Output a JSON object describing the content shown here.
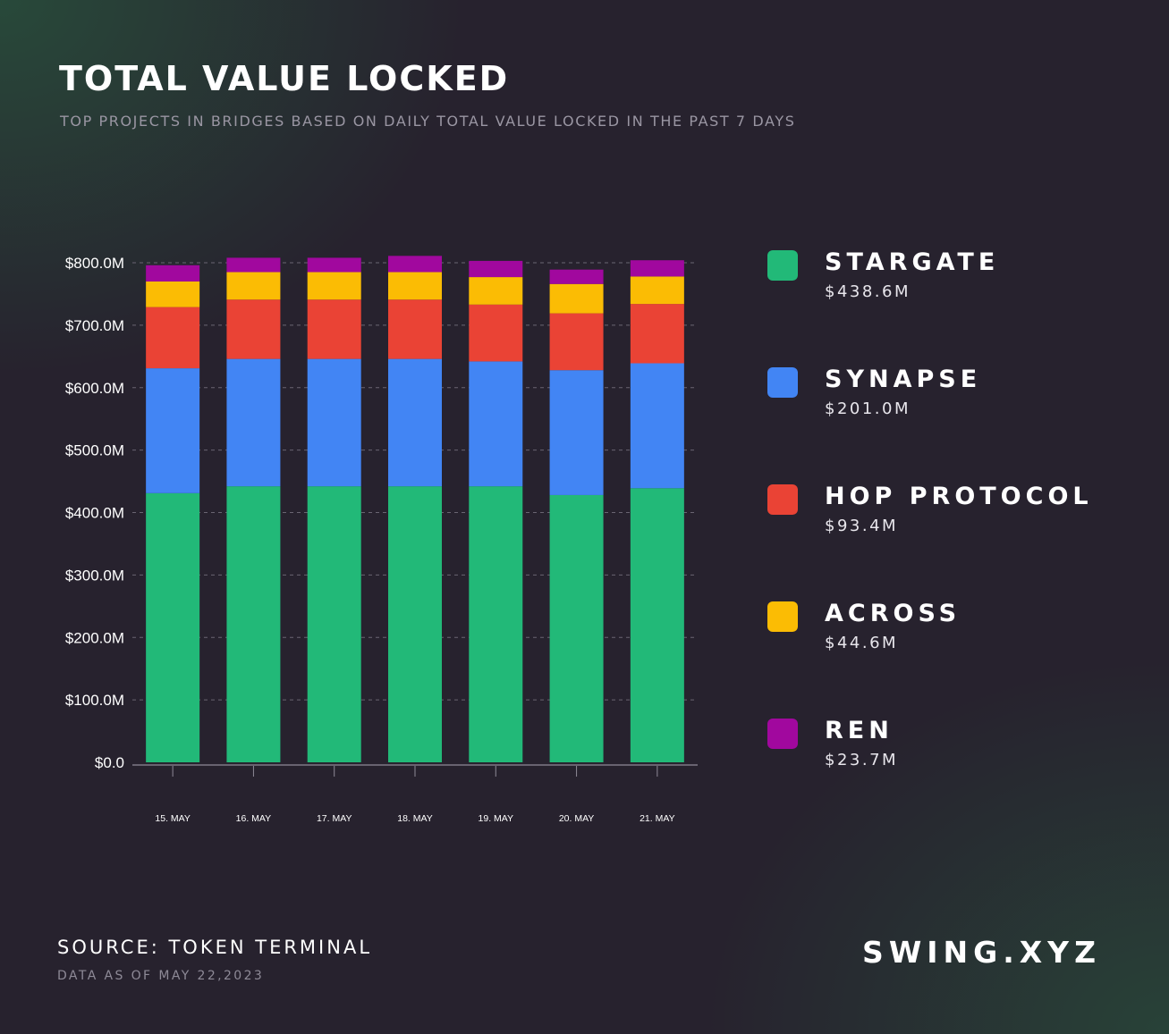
{
  "title": "TOTAL VALUE LOCKED",
  "subtitle": "TOP PROJECTS IN BRIDGES BASED ON DAILY TOTAL VALUE LOCKED IN THE PAST 7 DAYS",
  "legend": [
    {
      "name": "STARGATE",
      "value": "$438.6M",
      "color": "#22b978"
    },
    {
      "name": "SYNAPSE",
      "value": "$201.0M",
      "color": "#4285f4"
    },
    {
      "name": "HOP PROTOCOL",
      "value": "$93.4M",
      "color": "#ea4335"
    },
    {
      "name": "ACROSS",
      "value": "$44.6M",
      "color": "#fbbc04"
    },
    {
      "name": "REN",
      "value": "$23.7M",
      "color": "#a1089e"
    }
  ],
  "footer": {
    "source": "SOURCE: TOKEN TERMINAL",
    "as_of": "DATA AS OF MAY 22,2023",
    "brand": "SWING.XYZ"
  },
  "chart_data": {
    "type": "bar",
    "stacked": true,
    "categories": [
      "15. MAY",
      "16. MAY",
      "17. MAY",
      "18. MAY",
      "19. MAY",
      "20. MAY",
      "21. MAY"
    ],
    "ylim": [
      0,
      800
    ],
    "yticks": [
      0,
      100,
      200,
      300,
      400,
      500,
      600,
      700,
      800
    ],
    "ytick_labels": [
      "$0.0",
      "$100.0M",
      "$200.0M",
      "$300.0M",
      "$400.0M",
      "$500.0M",
      "$600.0M",
      "$700.0M",
      "$800.0M"
    ],
    "grid": true,
    "legend_position": "right",
    "series": [
      {
        "name": "STARGATE",
        "color": "#22b978",
        "values": [
          431,
          442,
          442,
          442,
          442,
          428,
          439
        ]
      },
      {
        "name": "SYNAPSE",
        "color": "#4285f4",
        "values": [
          200,
          204,
          204,
          204,
          200,
          200,
          200
        ]
      },
      {
        "name": "HOP PROTOCOL",
        "color": "#ea4335",
        "values": [
          98,
          95,
          95,
          95,
          91,
          91,
          95
        ]
      },
      {
        "name": "ACROSS",
        "color": "#fbbc04",
        "values": [
          41,
          44,
          44,
          44,
          44,
          47,
          44
        ]
      },
      {
        "name": "REN",
        "color": "#a1089e",
        "values": [
          26,
          23,
          23,
          26,
          26,
          23,
          26
        ]
      }
    ]
  }
}
